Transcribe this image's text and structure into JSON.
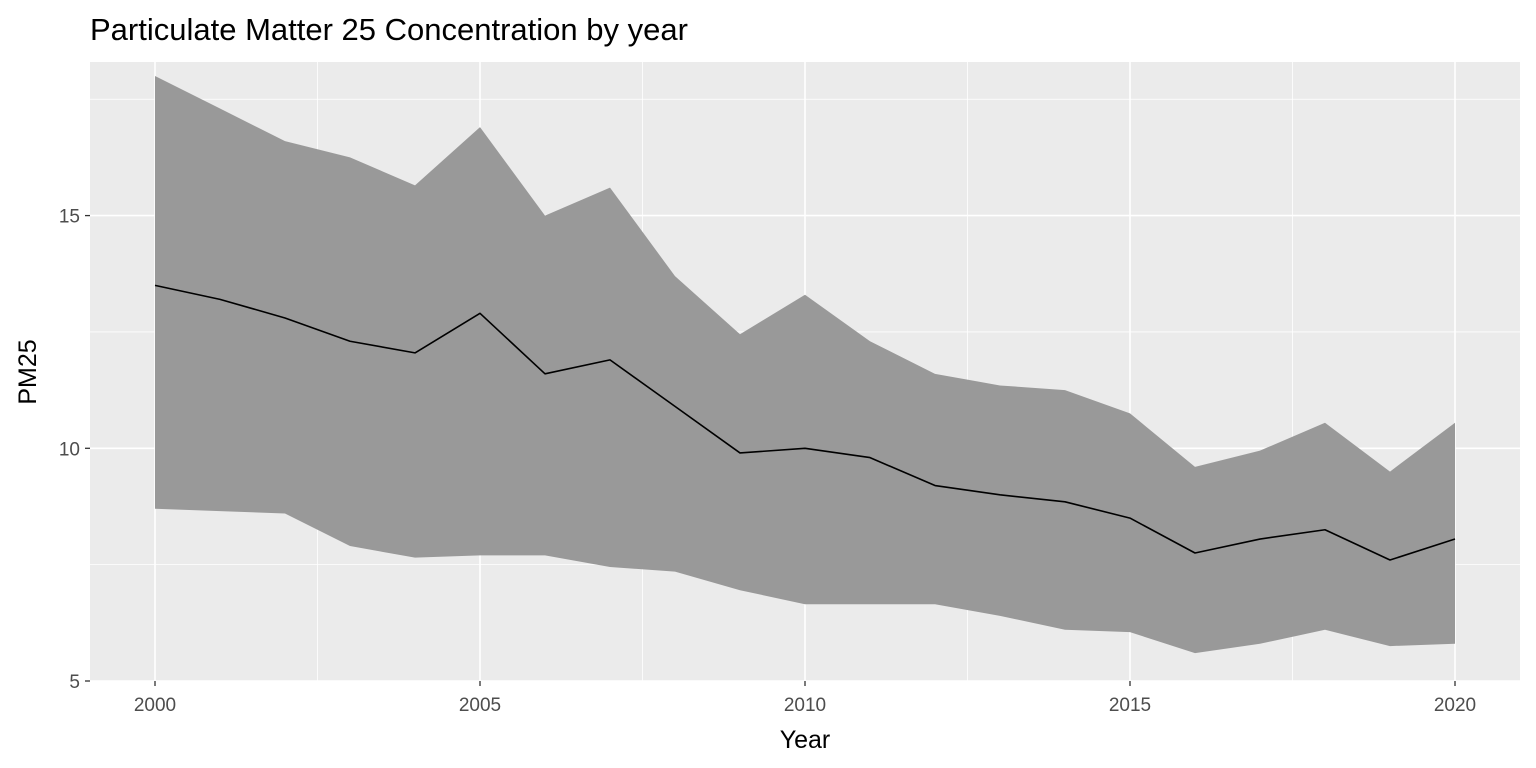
{
  "chart_data": {
    "type": "area",
    "title": "Particulate Matter 25 Concentration by year",
    "xlabel": "Year",
    "ylabel": "PM25",
    "xlim": [
      1999,
      2021
    ],
    "ylim": [
      5,
      18.3
    ],
    "x_ticks": [
      2000,
      2005,
      2010,
      2015,
      2020
    ],
    "y_ticks": [
      5,
      10,
      15
    ],
    "grid": true,
    "legend": "none",
    "colors": {
      "panel_background": "#ebebeb",
      "grid_major": "#ffffff",
      "ribbon_fill": "#999999",
      "line": "#000000",
      "tick_text": "#4d4d4d"
    },
    "x": [
      2000,
      2001,
      2002,
      2003,
      2004,
      2005,
      2006,
      2007,
      2008,
      2009,
      2010,
      2011,
      2012,
      2013,
      2014,
      2015,
      2016,
      2017,
      2018,
      2019,
      2020
    ],
    "series": [
      {
        "role": "ribbon-upper",
        "values": [
          18.0,
          17.3,
          16.6,
          16.25,
          15.65,
          16.9,
          15.0,
          15.6,
          13.7,
          12.45,
          13.3,
          12.3,
          11.6,
          11.35,
          11.25,
          10.75,
          9.6,
          9.95,
          10.55,
          9.5,
          10.55
        ]
      },
      {
        "role": "line",
        "values": [
          13.5,
          13.2,
          12.8,
          12.3,
          12.05,
          12.9,
          11.6,
          11.9,
          10.9,
          9.9,
          10.0,
          9.8,
          9.2,
          9.0,
          8.85,
          8.5,
          7.75,
          8.05,
          8.25,
          7.6,
          8.05
        ]
      },
      {
        "role": "ribbon-lower",
        "values": [
          8.7,
          8.65,
          8.6,
          7.9,
          7.65,
          7.7,
          7.7,
          7.45,
          7.35,
          6.95,
          6.65,
          6.65,
          6.65,
          6.4,
          6.1,
          6.05,
          5.6,
          5.8,
          6.1,
          5.75,
          5.8
        ]
      }
    ]
  }
}
